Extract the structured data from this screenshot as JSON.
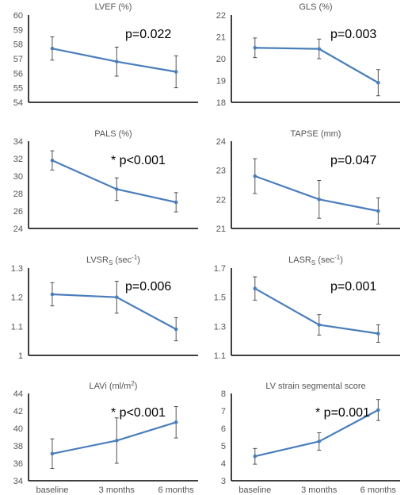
{
  "chart_data": [
    {
      "type": "line",
      "title": "LVEF (%)",
      "categories": [
        "",
        "",
        ""
      ],
      "values": [
        57.7,
        56.8,
        56.1
      ],
      "errors": [
        0.8,
        1.0,
        1.1
      ],
      "ylim": [
        54,
        60
      ],
      "yticks": [
        54,
        55,
        56,
        57,
        58,
        59,
        60
      ],
      "annotation": "p=0.022"
    },
    {
      "type": "line",
      "title": "GLS (%)",
      "categories": [
        "",
        "",
        ""
      ],
      "values": [
        20.5,
        20.45,
        18.9
      ],
      "errors": [
        0.45,
        0.45,
        0.6
      ],
      "ylim": [
        18,
        22
      ],
      "yticks": [
        18,
        19,
        20,
        21,
        22
      ],
      "annotation": "p=0.003"
    },
    {
      "type": "line",
      "title": "PALS (%)",
      "categories": [
        "",
        "",
        ""
      ],
      "values": [
        31.8,
        28.5,
        27.0
      ],
      "errors": [
        1.1,
        1.3,
        1.1
      ],
      "ylim": [
        24,
        34
      ],
      "yticks": [
        24,
        26,
        28,
        30,
        32,
        34
      ],
      "annotation": "* p<0.001"
    },
    {
      "type": "line",
      "title": "TAPSE (mm)",
      "categories": [
        "",
        "",
        ""
      ],
      "values": [
        22.8,
        22.0,
        21.6
      ],
      "errors": [
        0.6,
        0.65,
        0.45
      ],
      "ylim": [
        21,
        24
      ],
      "yticks": [
        21,
        22,
        23,
        24
      ],
      "annotation": "p=0.047"
    },
    {
      "type": "line",
      "title": "LVSR",
      "title_sub": "S",
      "title_after": " (sec",
      "title_sup": "-1",
      "title_end": ")",
      "categories": [
        "",
        "",
        ""
      ],
      "values": [
        1.21,
        1.2,
        1.09
      ],
      "errors": [
        0.04,
        0.055,
        0.04
      ],
      "ylim": [
        1.0,
        1.3
      ],
      "yticks": [
        "1",
        "1.1",
        "1.2",
        "1.3"
      ],
      "annotation": "p=0.006"
    },
    {
      "type": "line",
      "title": "LASR",
      "title_sub": "S",
      "title_after": " (sec",
      "title_sup": "-1",
      "title_end": ")",
      "categories": [
        "",
        "",
        ""
      ],
      "values": [
        1.56,
        1.31,
        1.25
      ],
      "errors": [
        0.08,
        0.07,
        0.06
      ],
      "ylim": [
        1.1,
        1.7
      ],
      "yticks": [
        "1.1",
        "1.3",
        "1.5",
        "1.7"
      ],
      "annotation": "p=0.001"
    },
    {
      "type": "line",
      "title": "LAVi (ml/m",
      "title_sup": "2",
      "title_end": ")",
      "categories": [
        "baseline",
        "3 months",
        "6 months"
      ],
      "values": [
        37.1,
        38.6,
        40.7
      ],
      "errors": [
        1.7,
        2.6,
        1.8
      ],
      "ylim": [
        34,
        44
      ],
      "yticks": [
        34,
        36,
        38,
        40,
        42,
        44
      ],
      "annotation": "* p<0.001"
    },
    {
      "type": "line",
      "title": "LV strain segmental score",
      "categories": [
        "baseline",
        "3 months",
        "6 months"
      ],
      "values": [
        4.4,
        5.25,
        7.05
      ],
      "errors": [
        0.45,
        0.5,
        0.6
      ],
      "ylim": [
        3,
        8
      ],
      "yticks": [
        3,
        4,
        5,
        6,
        7,
        8
      ],
      "annotation": "* p=0.001"
    }
  ],
  "colors": {
    "series": "#4a7ebb",
    "axis": "#000000",
    "error_bar": "#404040",
    "text": "#555555"
  }
}
